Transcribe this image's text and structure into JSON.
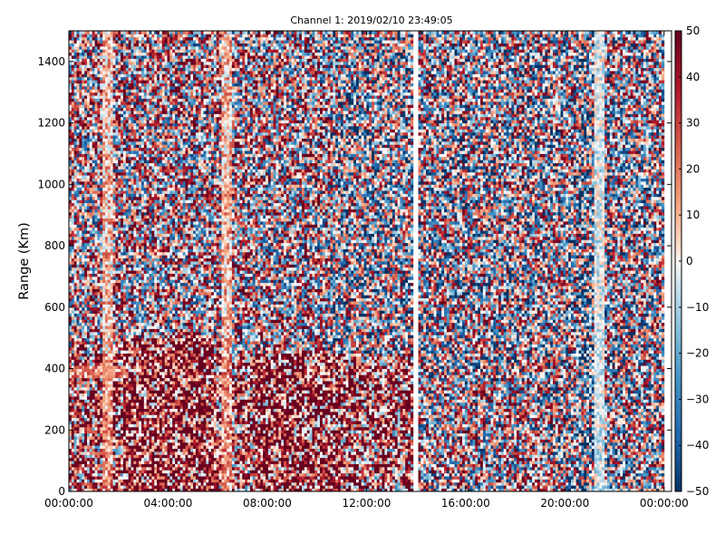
{
  "chart_data": {
    "type": "heatmap",
    "title": "Channel 1: 2019/02/10 23:49:05",
    "xlabel": "",
    "ylabel": "Range (Km)",
    "x_ticks": [
      "00:00:00",
      "04:00:00",
      "08:00:00",
      "12:00:00",
      "16:00:00",
      "20:00:00",
      "00:00:00"
    ],
    "x_tick_hours": [
      0,
      4,
      8,
      12,
      16,
      20,
      24
    ],
    "xlim_hours": [
      0,
      24.3
    ],
    "y_ticks": [
      0,
      200,
      400,
      600,
      800,
      1000,
      1200,
      1400
    ],
    "ylim": [
      0,
      1500
    ],
    "colorbar": {
      "ticks": [
        50,
        40,
        30,
        20,
        10,
        0,
        -10,
        -20,
        -30,
        -40,
        -50
      ],
      "range": [
        -50,
        50
      ],
      "colormap": "RdBu_r"
    },
    "data_gap_hours": [
      13.85,
      14.05
    ],
    "data_end_hours": 24.0,
    "colors": {
      "deep_red": "#67001f",
      "red": "#b2182b",
      "light_red": "#f4a582",
      "white": "#f7f7f7",
      "light_blue": "#92c5de",
      "blue": "#2166ac",
      "deep_blue": "#053061"
    }
  }
}
